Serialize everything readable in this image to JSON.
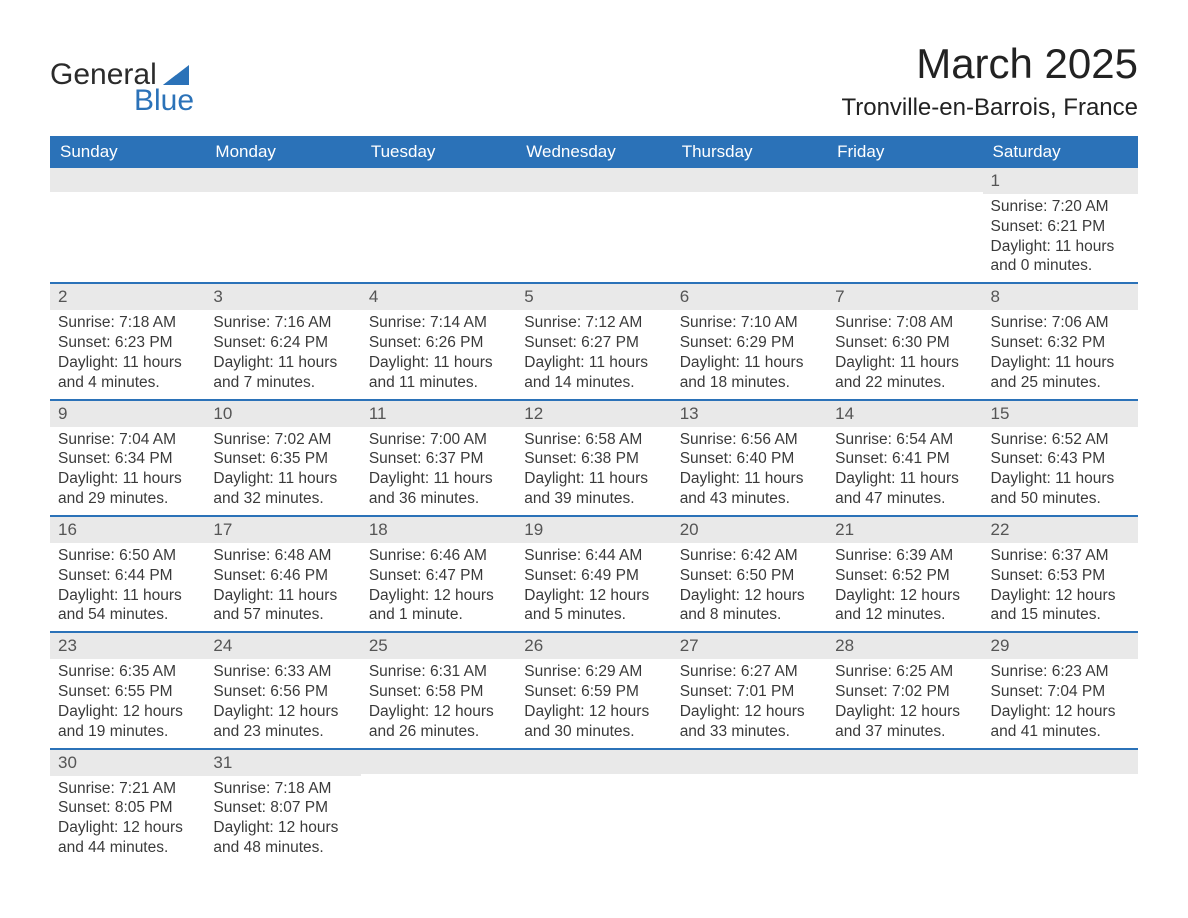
{
  "logo": {
    "text1": "General",
    "text2": "Blue",
    "tri_color": "#2b72b8"
  },
  "title": "March 2025",
  "location": "Tronville-en-Barrois, France",
  "colors": {
    "header_bg": "#2b72b8",
    "header_fg": "#ffffff",
    "daynum_bg": "#e9e9e9",
    "row_border": "#2b72b8",
    "text": "#3a3a3a",
    "background": "#ffffff"
  },
  "typography": {
    "title_fontsize": 42,
    "location_fontsize": 24,
    "header_fontsize": 17,
    "daynum_fontsize": 17,
    "body_fontsize": 15.5
  },
  "layout": {
    "columns": 7,
    "rows": 6
  },
  "weekdays": [
    "Sunday",
    "Monday",
    "Tuesday",
    "Wednesday",
    "Thursday",
    "Friday",
    "Saturday"
  ],
  "weeks": [
    [
      null,
      null,
      null,
      null,
      null,
      null,
      {
        "day": "1",
        "sunrise": "Sunrise: 7:20 AM",
        "sunset": "Sunset: 6:21 PM",
        "daylight": "Daylight: 11 hours and 0 minutes."
      }
    ],
    [
      {
        "day": "2",
        "sunrise": "Sunrise: 7:18 AM",
        "sunset": "Sunset: 6:23 PM",
        "daylight": "Daylight: 11 hours and 4 minutes."
      },
      {
        "day": "3",
        "sunrise": "Sunrise: 7:16 AM",
        "sunset": "Sunset: 6:24 PM",
        "daylight": "Daylight: 11 hours and 7 minutes."
      },
      {
        "day": "4",
        "sunrise": "Sunrise: 7:14 AM",
        "sunset": "Sunset: 6:26 PM",
        "daylight": "Daylight: 11 hours and 11 minutes."
      },
      {
        "day": "5",
        "sunrise": "Sunrise: 7:12 AM",
        "sunset": "Sunset: 6:27 PM",
        "daylight": "Daylight: 11 hours and 14 minutes."
      },
      {
        "day": "6",
        "sunrise": "Sunrise: 7:10 AM",
        "sunset": "Sunset: 6:29 PM",
        "daylight": "Daylight: 11 hours and 18 minutes."
      },
      {
        "day": "7",
        "sunrise": "Sunrise: 7:08 AM",
        "sunset": "Sunset: 6:30 PM",
        "daylight": "Daylight: 11 hours and 22 minutes."
      },
      {
        "day": "8",
        "sunrise": "Sunrise: 7:06 AM",
        "sunset": "Sunset: 6:32 PM",
        "daylight": "Daylight: 11 hours and 25 minutes."
      }
    ],
    [
      {
        "day": "9",
        "sunrise": "Sunrise: 7:04 AM",
        "sunset": "Sunset: 6:34 PM",
        "daylight": "Daylight: 11 hours and 29 minutes."
      },
      {
        "day": "10",
        "sunrise": "Sunrise: 7:02 AM",
        "sunset": "Sunset: 6:35 PM",
        "daylight": "Daylight: 11 hours and 32 minutes."
      },
      {
        "day": "11",
        "sunrise": "Sunrise: 7:00 AM",
        "sunset": "Sunset: 6:37 PM",
        "daylight": "Daylight: 11 hours and 36 minutes."
      },
      {
        "day": "12",
        "sunrise": "Sunrise: 6:58 AM",
        "sunset": "Sunset: 6:38 PM",
        "daylight": "Daylight: 11 hours and 39 minutes."
      },
      {
        "day": "13",
        "sunrise": "Sunrise: 6:56 AM",
        "sunset": "Sunset: 6:40 PM",
        "daylight": "Daylight: 11 hours and 43 minutes."
      },
      {
        "day": "14",
        "sunrise": "Sunrise: 6:54 AM",
        "sunset": "Sunset: 6:41 PM",
        "daylight": "Daylight: 11 hours and 47 minutes."
      },
      {
        "day": "15",
        "sunrise": "Sunrise: 6:52 AM",
        "sunset": "Sunset: 6:43 PM",
        "daylight": "Daylight: 11 hours and 50 minutes."
      }
    ],
    [
      {
        "day": "16",
        "sunrise": "Sunrise: 6:50 AM",
        "sunset": "Sunset: 6:44 PM",
        "daylight": "Daylight: 11 hours and 54 minutes."
      },
      {
        "day": "17",
        "sunrise": "Sunrise: 6:48 AM",
        "sunset": "Sunset: 6:46 PM",
        "daylight": "Daylight: 11 hours and 57 minutes."
      },
      {
        "day": "18",
        "sunrise": "Sunrise: 6:46 AM",
        "sunset": "Sunset: 6:47 PM",
        "daylight": "Daylight: 12 hours and 1 minute."
      },
      {
        "day": "19",
        "sunrise": "Sunrise: 6:44 AM",
        "sunset": "Sunset: 6:49 PM",
        "daylight": "Daylight: 12 hours and 5 minutes."
      },
      {
        "day": "20",
        "sunrise": "Sunrise: 6:42 AM",
        "sunset": "Sunset: 6:50 PM",
        "daylight": "Daylight: 12 hours and 8 minutes."
      },
      {
        "day": "21",
        "sunrise": "Sunrise: 6:39 AM",
        "sunset": "Sunset: 6:52 PM",
        "daylight": "Daylight: 12 hours and 12 minutes."
      },
      {
        "day": "22",
        "sunrise": "Sunrise: 6:37 AM",
        "sunset": "Sunset: 6:53 PM",
        "daylight": "Daylight: 12 hours and 15 minutes."
      }
    ],
    [
      {
        "day": "23",
        "sunrise": "Sunrise: 6:35 AM",
        "sunset": "Sunset: 6:55 PM",
        "daylight": "Daylight: 12 hours and 19 minutes."
      },
      {
        "day": "24",
        "sunrise": "Sunrise: 6:33 AM",
        "sunset": "Sunset: 6:56 PM",
        "daylight": "Daylight: 12 hours and 23 minutes."
      },
      {
        "day": "25",
        "sunrise": "Sunrise: 6:31 AM",
        "sunset": "Sunset: 6:58 PM",
        "daylight": "Daylight: 12 hours and 26 minutes."
      },
      {
        "day": "26",
        "sunrise": "Sunrise: 6:29 AM",
        "sunset": "Sunset: 6:59 PM",
        "daylight": "Daylight: 12 hours and 30 minutes."
      },
      {
        "day": "27",
        "sunrise": "Sunrise: 6:27 AM",
        "sunset": "Sunset: 7:01 PM",
        "daylight": "Daylight: 12 hours and 33 minutes."
      },
      {
        "day": "28",
        "sunrise": "Sunrise: 6:25 AM",
        "sunset": "Sunset: 7:02 PM",
        "daylight": "Daylight: 12 hours and 37 minutes."
      },
      {
        "day": "29",
        "sunrise": "Sunrise: 6:23 AM",
        "sunset": "Sunset: 7:04 PM",
        "daylight": "Daylight: 12 hours and 41 minutes."
      }
    ],
    [
      {
        "day": "30",
        "sunrise": "Sunrise: 7:21 AM",
        "sunset": "Sunset: 8:05 PM",
        "daylight": "Daylight: 12 hours and 44 minutes."
      },
      {
        "day": "31",
        "sunrise": "Sunrise: 7:18 AM",
        "sunset": "Sunset: 8:07 PM",
        "daylight": "Daylight: 12 hours and 48 minutes."
      },
      null,
      null,
      null,
      null,
      null
    ]
  ]
}
